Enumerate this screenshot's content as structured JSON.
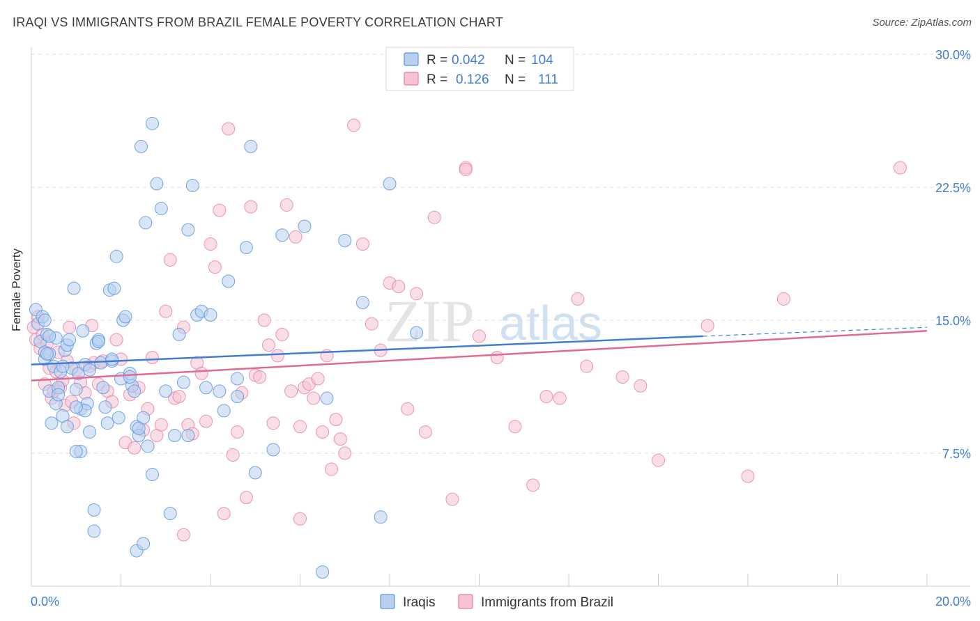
{
  "title": "IRAQI VS IMMIGRANTS FROM BRAZIL FEMALE POVERTY CORRELATION CHART",
  "source": "Source: ZipAtlas.com",
  "watermark": {
    "zip": "ZIP",
    "atlas": "atlas"
  },
  "colors": {
    "blue": "#5b95dc",
    "blue_fill": "#b7d0f0",
    "blue_line": "#3f7dd1",
    "pink": "#e87aa0",
    "pink_fill": "#f6c2d4",
    "pink_line": "#e06a93",
    "value_text": "#3f7dd1",
    "grid": "#dcdcdc"
  },
  "legend_box": [
    {
      "r_label": "R =",
      "r_value": "0.042",
      "n_label": "N =",
      "n_value": "104"
    },
    {
      "r_label": "R =",
      "r_value": "0.126",
      "n_label": "N =",
      "n_value": "111"
    }
  ],
  "chart_data": {
    "type": "scatter",
    "title": "IRAQI VS IMMIGRANTS FROM BRAZIL FEMALE POVERTY CORRELATION CHART",
    "xlabel": "",
    "ylabel": "Female Poverty",
    "xlim": [
      0,
      20
    ],
    "ylim": [
      0,
      30
    ],
    "x_tick_labels": [
      "0.0%",
      "20.0%"
    ],
    "y_ticks": [
      7.5,
      15.0,
      22.5,
      30.0
    ],
    "y_tick_labels": [
      "7.5%",
      "15.0%",
      "22.5%",
      "30.0%"
    ],
    "grid": "horizontal dashed",
    "legend": "bottom-center",
    "series": [
      {
        "name": "Iraqis",
        "color": "#5b95dc",
        "trend": {
          "x": [
            0,
            15
          ],
          "y": [
            12.5,
            14.1
          ],
          "dashed_to": [
            20,
            14.6
          ]
        },
        "points": [
          [
            0.1,
            15.6
          ],
          [
            0.15,
            14.8
          ],
          [
            0.2,
            13.8
          ],
          [
            0.25,
            15.2
          ],
          [
            0.3,
            12.8
          ],
          [
            0.3,
            13.2
          ],
          [
            0.35,
            14.2
          ],
          [
            0.4,
            13.1
          ],
          [
            0.4,
            11.0
          ],
          [
            0.45,
            9.2
          ],
          [
            0.5,
            12.4
          ],
          [
            0.55,
            14.0
          ],
          [
            0.6,
            11.2
          ],
          [
            0.65,
            12.1
          ],
          [
            0.7,
            9.6
          ],
          [
            0.75,
            13.3
          ],
          [
            0.8,
            13.6
          ],
          [
            0.85,
            13.9
          ],
          [
            0.9,
            12.3
          ],
          [
            0.95,
            16.8
          ],
          [
            1.0,
            11.1
          ],
          [
            1.05,
            12.0
          ],
          [
            1.1,
            10.0
          ],
          [
            1.1,
            7.6
          ],
          [
            1.15,
            14.4
          ],
          [
            1.2,
            12.5
          ],
          [
            1.25,
            10.3
          ],
          [
            1.3,
            12.2
          ],
          [
            1.3,
            8.7
          ],
          [
            1.4,
            4.3
          ],
          [
            1.45,
            13.7
          ],
          [
            1.5,
            13.9
          ],
          [
            1.55,
            12.6
          ],
          [
            1.6,
            11.2
          ],
          [
            1.65,
            10.1
          ],
          [
            1.7,
            9.2
          ],
          [
            1.75,
            16.7
          ],
          [
            1.8,
            12.7
          ],
          [
            1.85,
            16.8
          ],
          [
            1.9,
            18.6
          ],
          [
            1.95,
            9.5
          ],
          [
            2.0,
            11.7
          ],
          [
            2.05,
            15.0
          ],
          [
            2.1,
            15.2
          ],
          [
            2.2,
            12.0
          ],
          [
            2.25,
            11.3
          ],
          [
            2.3,
            11.0
          ],
          [
            2.35,
            9.0
          ],
          [
            2.4,
            8.5
          ],
          [
            2.45,
            24.8
          ],
          [
            2.5,
            9.5
          ],
          [
            2.55,
            20.5
          ],
          [
            2.6,
            7.9
          ],
          [
            2.7,
            26.1
          ],
          [
            2.8,
            22.7
          ],
          [
            2.9,
            21.3
          ],
          [
            3.0,
            11.0
          ],
          [
            3.1,
            4.1
          ],
          [
            3.2,
            8.5
          ],
          [
            3.3,
            14.2
          ],
          [
            3.4,
            11.5
          ],
          [
            3.5,
            20.1
          ],
          [
            3.6,
            22.6
          ],
          [
            3.7,
            15.3
          ],
          [
            3.8,
            15.5
          ],
          [
            3.9,
            11.2
          ],
          [
            4.0,
            15.3
          ],
          [
            4.2,
            11.0
          ],
          [
            4.3,
            9.9
          ],
          [
            4.4,
            17.2
          ],
          [
            4.6,
            11.7
          ],
          [
            4.8,
            19.1
          ],
          [
            4.9,
            24.8
          ],
          [
            5.0,
            6.4
          ],
          [
            5.4,
            7.7
          ],
          [
            5.6,
            19.8
          ],
          [
            6.1,
            20.3
          ],
          [
            6.5,
            0.8
          ],
          [
            6.6,
            10.6
          ],
          [
            7.0,
            19.5
          ],
          [
            7.4,
            16.0
          ],
          [
            7.8,
            3.9
          ],
          [
            8.0,
            22.7
          ],
          [
            8.6,
            14.3
          ],
          [
            1.0,
            7.6
          ],
          [
            1.4,
            3.1
          ],
          [
            2.35,
            2.0
          ],
          [
            2.5,
            2.4
          ],
          [
            2.7,
            6.3
          ],
          [
            1.5,
            13.8
          ],
          [
            0.55,
            10.3
          ],
          [
            0.6,
            10.8
          ],
          [
            2.4,
            8.9
          ],
          [
            3.5,
            8.5
          ],
          [
            0.8,
            9.0
          ],
          [
            1.2,
            9.9
          ],
          [
            0.3,
            15.0
          ],
          [
            0.4,
            14.1
          ],
          [
            4.6,
            10.7
          ],
          [
            0.7,
            12.4
          ],
          [
            1.0,
            10.1
          ],
          [
            1.8,
            12.8
          ],
          [
            2.2,
            11.8
          ],
          [
            0.35,
            13.1
          ]
        ]
      },
      {
        "name": "Immigrants from Brazil",
        "color": "#e87aa0",
        "trend": {
          "x": [
            0,
            20
          ],
          "y": [
            11.6,
            14.4
          ]
        },
        "points": [
          [
            0.05,
            14.6
          ],
          [
            0.1,
            13.9
          ],
          [
            0.15,
            15.2
          ],
          [
            0.2,
            13.4
          ],
          [
            0.25,
            14.2
          ],
          [
            0.3,
            11.4
          ],
          [
            0.35,
            13.7
          ],
          [
            0.4,
            12.3
          ],
          [
            0.45,
            10.6
          ],
          [
            0.5,
            11.0
          ],
          [
            0.55,
            12.1
          ],
          [
            0.6,
            13.2
          ],
          [
            0.65,
            11.2
          ],
          [
            0.7,
            11.6
          ],
          [
            0.75,
            10.2
          ],
          [
            0.8,
            12.7
          ],
          [
            0.85,
            14.6
          ],
          [
            0.9,
            10.4
          ],
          [
            0.95,
            9.2
          ],
          [
            1.0,
            12.2
          ],
          [
            1.1,
            11.5
          ],
          [
            1.2,
            10.9
          ],
          [
            1.3,
            12.4
          ],
          [
            1.35,
            14.7
          ],
          [
            1.4,
            12.6
          ],
          [
            1.5,
            11.4
          ],
          [
            1.6,
            12.7
          ],
          [
            1.7,
            11.0
          ],
          [
            1.8,
            10.4
          ],
          [
            1.9,
            13.9
          ],
          [
            2.0,
            12.8
          ],
          [
            2.1,
            8.1
          ],
          [
            2.2,
            10.8
          ],
          [
            2.3,
            7.8
          ],
          [
            2.4,
            11.2
          ],
          [
            2.5,
            8.8
          ],
          [
            2.6,
            10.0
          ],
          [
            2.7,
            12.9
          ],
          [
            2.8,
            8.5
          ],
          [
            2.9,
            9.1
          ],
          [
            3.0,
            15.5
          ],
          [
            3.1,
            18.4
          ],
          [
            3.2,
            10.6
          ],
          [
            3.3,
            10.7
          ],
          [
            3.4,
            14.6
          ],
          [
            3.5,
            9.1
          ],
          [
            3.6,
            8.6
          ],
          [
            3.7,
            12.6
          ],
          [
            3.8,
            12.0
          ],
          [
            3.9,
            9.3
          ],
          [
            4.0,
            19.3
          ],
          [
            4.1,
            18.0
          ],
          [
            4.2,
            21.2
          ],
          [
            4.3,
            4.1
          ],
          [
            4.4,
            25.8
          ],
          [
            4.5,
            7.4
          ],
          [
            4.6,
            8.7
          ],
          [
            4.7,
            10.9
          ],
          [
            4.8,
            5.0
          ],
          [
            4.9,
            21.4
          ],
          [
            5.0,
            11.9
          ],
          [
            5.1,
            11.8
          ],
          [
            5.2,
            15.0
          ],
          [
            5.3,
            13.6
          ],
          [
            5.4,
            9.2
          ],
          [
            5.5,
            13.0
          ],
          [
            5.6,
            14.2
          ],
          [
            5.7,
            21.5
          ],
          [
            5.8,
            11.0
          ],
          [
            5.9,
            19.7
          ],
          [
            6.0,
            9.0
          ],
          [
            6.1,
            11.2
          ],
          [
            6.2,
            11.4
          ],
          [
            6.3,
            10.6
          ],
          [
            6.4,
            11.7
          ],
          [
            6.5,
            8.7
          ],
          [
            6.6,
            13.0
          ],
          [
            6.7,
            6.6
          ],
          [
            6.8,
            9.4
          ],
          [
            6.9,
            8.3
          ],
          [
            7.0,
            7.5
          ],
          [
            7.2,
            26.0
          ],
          [
            7.4,
            19.3
          ],
          [
            7.6,
            14.8
          ],
          [
            7.8,
            13.3
          ],
          [
            8.0,
            17.1
          ],
          [
            8.2,
            16.9
          ],
          [
            8.4,
            10.0
          ],
          [
            8.6,
            16.5
          ],
          [
            8.8,
            8.7
          ],
          [
            9.0,
            20.8
          ],
          [
            9.4,
            4.9
          ],
          [
            9.7,
            23.6
          ],
          [
            10.0,
            14.1
          ],
          [
            10.4,
            12.9
          ],
          [
            10.8,
            9.0
          ],
          [
            11.2,
            5.7
          ],
          [
            11.5,
            10.7
          ],
          [
            11.8,
            10.6
          ],
          [
            12.2,
            16.2
          ],
          [
            12.4,
            12.4
          ],
          [
            13.2,
            11.8
          ],
          [
            13.6,
            11.3
          ],
          [
            14.0,
            7.1
          ],
          [
            15.1,
            14.7
          ],
          [
            16.0,
            6.2
          ],
          [
            16.8,
            16.2
          ],
          [
            19.4,
            23.6
          ],
          [
            9.7,
            23.5
          ],
          [
            6.0,
            3.8
          ],
          [
            3.4,
            2.9
          ]
        ]
      }
    ]
  },
  "bottom_legend": [
    {
      "label": "Iraqis"
    },
    {
      "label": "Immigrants from Brazil"
    }
  ]
}
